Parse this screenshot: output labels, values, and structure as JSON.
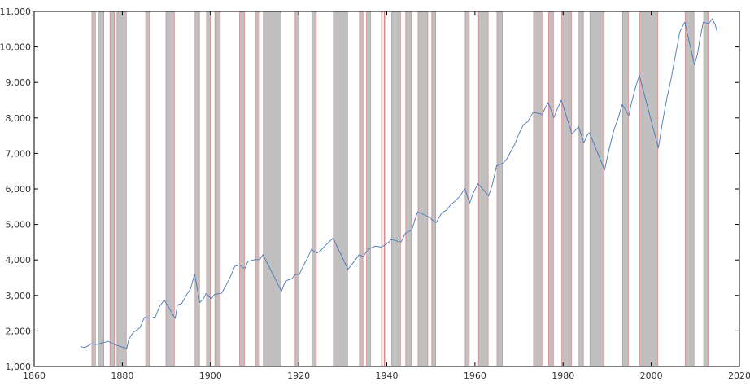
{
  "chart_data": {
    "type": "line",
    "title": "",
    "xlabel": "",
    "ylabel": "",
    "xlim": [
      1860,
      2020
    ],
    "ylim": [
      1000,
      11000
    ],
    "grid": false,
    "legend": "none",
    "x_ticks": [
      1860,
      1880,
      1900,
      1920,
      1940,
      1960,
      1980,
      2000,
      2020
    ],
    "y_ticks": [
      1000,
      2000,
      3000,
      4000,
      5000,
      6000,
      7000,
      8000,
      9000,
      10000,
      11000
    ],
    "x_tick_labels": [
      "1860",
      "1880",
      "1900",
      "1920",
      "1940",
      "1960",
      "1980",
      "2000",
      "2020"
    ],
    "y_tick_labels": [
      "1,000",
      "2,000",
      "3,000",
      "4,000",
      "5,000",
      "6,000",
      "7,000",
      "8,000",
      "9,000",
      "10,000",
      "11,000"
    ],
    "colors": {
      "line": "#4a78b8",
      "band_fill": "#c0c0c0",
      "band_edge": "#d98b8b"
    },
    "shaded_periods": [
      [
        1873.1,
        1873.9
      ],
      [
        1874.7,
        1875.8
      ],
      [
        1877.2,
        1878.2
      ],
      [
        1878.8,
        1880.9
      ],
      [
        1885.3,
        1886.2
      ],
      [
        1889.9,
        1891.8
      ],
      [
        1896.5,
        1897.5
      ],
      [
        1899.1,
        1900.0
      ],
      [
        1901.0,
        1902.2
      ],
      [
        1906.6,
        1907.7
      ],
      [
        1910.2,
        1911.1
      ],
      [
        1912.0,
        1916.0
      ],
      [
        1919.2,
        1920.1
      ],
      [
        1923.0,
        1924.0
      ],
      [
        1927.9,
        1931.1
      ],
      [
        1933.8,
        1934.6
      ],
      [
        1935.4,
        1936.3
      ],
      [
        1938.8,
        1938.9
      ],
      [
        1939.4,
        1939.5
      ],
      [
        1941.1,
        1943.1
      ],
      [
        1944.3,
        1945.6
      ],
      [
        1947.1,
        1949.3
      ],
      [
        1950.2,
        1951.1
      ],
      [
        1957.8,
        1958.7
      ],
      [
        1960.8,
        1963.0
      ],
      [
        1965.0,
        1966.2
      ],
      [
        1973.3,
        1975.2
      ],
      [
        1976.7,
        1977.8
      ],
      [
        1979.7,
        1981.9
      ],
      [
        1983.6,
        1984.6
      ],
      [
        1986.1,
        1989.3
      ],
      [
        1993.5,
        1994.8
      ],
      [
        1997.4,
        2001.5
      ],
      [
        2007.7,
        2009.7
      ],
      [
        2011.9,
        2012.9
      ]
    ],
    "series": [
      {
        "x": [
          1870.5,
          1871.5,
          1872.5,
          1873.0,
          1874.0,
          1874.5,
          1876.0,
          1876.8,
          1878.5,
          1879.0,
          1881.0,
          1881.5,
          1882.5,
          1884.0,
          1885.0,
          1886.5,
          1887.5,
          1888.5,
          1889.5,
          1892.0,
          1892.5,
          1893.5,
          1894.5,
          1895.5,
          1896.4,
          1897.6,
          1898.5,
          1899.0,
          1900.2,
          1900.9,
          1902.5,
          1903.5,
          1904.5,
          1905.5,
          1906.5,
          1907.8,
          1908.5,
          1909.5,
          1910.1,
          1911.2,
          1911.9,
          1916.1,
          1917.0,
          1918.5,
          1919.1,
          1920.2,
          1921.0,
          1922.0,
          1922.9,
          1924.1,
          1925.0,
          1926.0,
          1927.0,
          1927.8,
          1931.2,
          1932.0,
          1932.8,
          1933.7,
          1934.7,
          1935.3,
          1936.4,
          1937.5,
          1938.7,
          1939.6,
          1940.5,
          1941.0,
          1943.2,
          1944.2,
          1945.7,
          1946.3,
          1947.0,
          1949.4,
          1950.1,
          1951.2,
          1952.5,
          1953.5,
          1954.5,
          1955.5,
          1956.5,
          1957.7,
          1958.8,
          1959.5,
          1960.7,
          1963.1,
          1964.0,
          1964.9,
          1966.3,
          1967.0,
          1968.0,
          1969.0,
          1970.0,
          1971.0,
          1972.0,
          1973.2,
          1975.3,
          1976.0,
          1976.6,
          1977.9,
          1978.5,
          1979.6,
          1982.0,
          1983.5,
          1984.7,
          1985.5,
          1986.0,
          1989.4,
          1990.5,
          1991.5,
          1992.5,
          1993.4,
          1994.9,
          1995.5,
          1996.5,
          1997.3,
          2001.6,
          2002.5,
          2003.5,
          2004.5,
          2005.5,
          2006.5,
          2007.6,
          2009.8,
          2010.5,
          2011.0,
          2011.8,
          2013.0,
          2013.8,
          2014.5,
          2015.0
        ],
        "y": [
          1560,
          1530,
          1600,
          1640,
          1620,
          1630,
          1680,
          1710,
          1600,
          1590,
          1500,
          1780,
          1960,
          2090,
          2380,
          2360,
          2400,
          2700,
          2870,
          2350,
          2730,
          2780,
          3000,
          3200,
          3600,
          2800,
          2920,
          3060,
          2900,
          3030,
          3060,
          3280,
          3520,
          3820,
          3860,
          3760,
          3960,
          3990,
          4010,
          4010,
          4150,
          3120,
          3410,
          3470,
          3580,
          3600,
          3820,
          4050,
          4300,
          4190,
          4260,
          4400,
          4520,
          4610,
          3740,
          3860,
          3990,
          4150,
          4090,
          4230,
          4340,
          4390,
          4360,
          4420,
          4510,
          4580,
          4500,
          4750,
          4850,
          5100,
          5350,
          5220,
          5150,
          5050,
          5330,
          5400,
          5550,
          5660,
          5780,
          6010,
          5600,
          5860,
          6150,
          5800,
          6150,
          6650,
          6720,
          6800,
          7020,
          7250,
          7560,
          7810,
          7900,
          8160,
          8100,
          8300,
          8430,
          8010,
          8200,
          8500,
          7550,
          7750,
          7300,
          7520,
          7580,
          6530,
          7150,
          7650,
          8000,
          8380,
          8060,
          8410,
          8900,
          9200,
          7150,
          7850,
          8530,
          9100,
          9770,
          10430,
          10700,
          9500,
          9800,
          10200,
          10700,
          10650,
          10790,
          10630,
          10400
        ]
      }
    ]
  }
}
